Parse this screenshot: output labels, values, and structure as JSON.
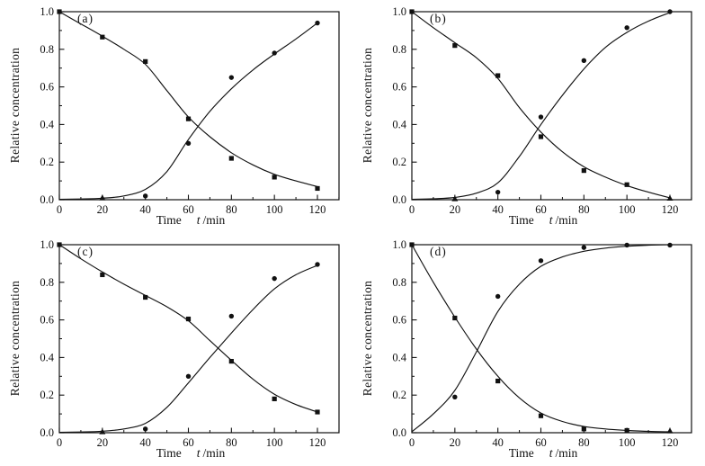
{
  "figure": {
    "ylabel": "Relative concentration",
    "xlabel_word": "Time",
    "xlabel_symbol": "t",
    "xlabel_unit": "/min",
    "line_color": "#111111",
    "background": "#ffffff"
  },
  "chart_data": [
    {
      "type": "line",
      "panel_label": "(a)",
      "xlabel": "Time t /min",
      "ylabel": "Relative concentration",
      "xlim": [
        0,
        130
      ],
      "ylim": [
        0,
        1.0
      ],
      "x_ticks": [
        0,
        20,
        40,
        60,
        80,
        100,
        120
      ],
      "x_minor_ticks": [
        10,
        30,
        50,
        70,
        90,
        110,
        130
      ],
      "y_ticks": [
        0.0,
        0.2,
        0.4,
        0.6,
        0.8,
        1.0
      ],
      "y_minor_ticks": [
        0.1,
        0.3,
        0.5,
        0.7,
        0.9
      ],
      "legend": "none",
      "grid": false,
      "series": [
        {
          "name": "reactant-squares",
          "marker": "square",
          "points": [
            [
              0,
              1.0
            ],
            [
              20,
              0.865
            ],
            [
              40,
              0.735
            ],
            [
              60,
              0.43
            ],
            [
              80,
              0.22
            ],
            [
              100,
              0.12
            ],
            [
              120,
              0.06
            ]
          ],
          "curve": [
            [
              0,
              1.0
            ],
            [
              10,
              0.935
            ],
            [
              20,
              0.87
            ],
            [
              30,
              0.8
            ],
            [
              40,
              0.72
            ],
            [
              50,
              0.58
            ],
            [
              60,
              0.44
            ],
            [
              70,
              0.335
            ],
            [
              80,
              0.25
            ],
            [
              90,
              0.185
            ],
            [
              100,
              0.135
            ],
            [
              110,
              0.1
            ],
            [
              120,
              0.07
            ]
          ]
        },
        {
          "name": "product-circles",
          "marker": "circle",
          "points": [
            [
              40,
              0.02
            ],
            [
              60,
              0.3
            ],
            [
              80,
              0.65
            ],
            [
              100,
              0.78
            ],
            [
              120,
              0.94
            ]
          ],
          "curve": [
            [
              0,
              0.002
            ],
            [
              10,
              0.004
            ],
            [
              20,
              0.008
            ],
            [
              30,
              0.02
            ],
            [
              40,
              0.055
            ],
            [
              50,
              0.15
            ],
            [
              60,
              0.32
            ],
            [
              70,
              0.47
            ],
            [
              80,
              0.59
            ],
            [
              90,
              0.69
            ],
            [
              100,
              0.775
            ],
            [
              110,
              0.855
            ],
            [
              120,
              0.94
            ]
          ]
        },
        {
          "name": "intermediate-triangles",
          "marker": "triangle",
          "points": [
            [
              20,
              0.01
            ]
          ],
          "curve": []
        }
      ]
    },
    {
      "type": "line",
      "panel_label": "(b)",
      "xlabel": "Time t /min",
      "ylabel": "Relative concentration",
      "xlim": [
        0,
        130
      ],
      "ylim": [
        0,
        1.0
      ],
      "x_ticks": [
        0,
        20,
        40,
        60,
        80,
        100,
        120
      ],
      "x_minor_ticks": [
        10,
        30,
        50,
        70,
        90,
        110,
        130
      ],
      "y_ticks": [
        0.0,
        0.2,
        0.4,
        0.6,
        0.8,
        1.0
      ],
      "y_minor_ticks": [
        0.1,
        0.3,
        0.5,
        0.7,
        0.9
      ],
      "legend": "none",
      "grid": false,
      "series": [
        {
          "name": "reactant-squares",
          "marker": "square",
          "points": [
            [
              0,
              1.0
            ],
            [
              20,
              0.82
            ],
            [
              40,
              0.66
            ],
            [
              60,
              0.335
            ],
            [
              80,
              0.155
            ],
            [
              100,
              0.08
            ]
          ],
          "curve": [
            [
              0,
              1.0
            ],
            [
              10,
              0.915
            ],
            [
              20,
              0.835
            ],
            [
              30,
              0.755
            ],
            [
              40,
              0.645
            ],
            [
              50,
              0.49
            ],
            [
              60,
              0.36
            ],
            [
              70,
              0.255
            ],
            [
              80,
              0.175
            ],
            [
              90,
              0.12
            ],
            [
              100,
              0.075
            ],
            [
              110,
              0.04
            ],
            [
              120,
              0.01
            ]
          ]
        },
        {
          "name": "product-circles",
          "marker": "circle",
          "points": [
            [
              40,
              0.04
            ],
            [
              60,
              0.44
            ],
            [
              80,
              0.74
            ],
            [
              100,
              0.915
            ],
            [
              120,
              1.0
            ]
          ],
          "curve": [
            [
              0,
              0.002
            ],
            [
              10,
              0.005
            ],
            [
              20,
              0.012
            ],
            [
              30,
              0.035
            ],
            [
              40,
              0.09
            ],
            [
              50,
              0.23
            ],
            [
              60,
              0.4
            ],
            [
              70,
              0.555
            ],
            [
              80,
              0.695
            ],
            [
              90,
              0.81
            ],
            [
              100,
              0.89
            ],
            [
              110,
              0.95
            ],
            [
              120,
              0.995
            ]
          ]
        },
        {
          "name": "intermediate-triangles",
          "marker": "triangle",
          "points": [
            [
              20,
              0.005
            ],
            [
              120,
              0.008
            ]
          ],
          "curve": []
        }
      ]
    },
    {
      "type": "line",
      "panel_label": "(c)",
      "xlabel": "Time t /min",
      "ylabel": "Relative concentration",
      "xlim": [
        0,
        130
      ],
      "ylim": [
        0,
        1.0
      ],
      "x_ticks": [
        0,
        20,
        40,
        60,
        80,
        100,
        120
      ],
      "x_minor_ticks": [
        10,
        30,
        50,
        70,
        90,
        110,
        130
      ],
      "y_ticks": [
        0.0,
        0.2,
        0.4,
        0.6,
        0.8,
        1.0
      ],
      "y_minor_ticks": [
        0.1,
        0.3,
        0.5,
        0.7,
        0.9
      ],
      "legend": "none",
      "grid": false,
      "series": [
        {
          "name": "reactant-squares",
          "marker": "square",
          "points": [
            [
              0,
              1.0
            ],
            [
              20,
              0.84
            ],
            [
              40,
              0.72
            ],
            [
              60,
              0.605
            ],
            [
              80,
              0.38
            ],
            [
              100,
              0.18
            ],
            [
              120,
              0.11
            ]
          ],
          "curve": [
            [
              0,
              1.0
            ],
            [
              10,
              0.925
            ],
            [
              20,
              0.855
            ],
            [
              30,
              0.79
            ],
            [
              40,
              0.73
            ],
            [
              50,
              0.67
            ],
            [
              60,
              0.595
            ],
            [
              70,
              0.49
            ],
            [
              80,
              0.385
            ],
            [
              90,
              0.285
            ],
            [
              100,
              0.205
            ],
            [
              110,
              0.15
            ],
            [
              120,
              0.11
            ]
          ]
        },
        {
          "name": "product-circles",
          "marker": "circle",
          "points": [
            [
              40,
              0.02
            ],
            [
              60,
              0.3
            ],
            [
              80,
              0.62
            ],
            [
              100,
              0.82
            ],
            [
              120,
              0.895
            ]
          ],
          "curve": [
            [
              0,
              0.002
            ],
            [
              10,
              0.004
            ],
            [
              20,
              0.008
            ],
            [
              30,
              0.02
            ],
            [
              40,
              0.05
            ],
            [
              50,
              0.135
            ],
            [
              60,
              0.265
            ],
            [
              70,
              0.4
            ],
            [
              80,
              0.53
            ],
            [
              90,
              0.655
            ],
            [
              100,
              0.765
            ],
            [
              110,
              0.84
            ],
            [
              120,
              0.89
            ]
          ]
        },
        {
          "name": "intermediate-triangles",
          "marker": "triangle",
          "points": [
            [
              20,
              0.005
            ]
          ],
          "curve": []
        }
      ]
    },
    {
      "type": "line",
      "panel_label": "(d)",
      "xlabel": "Time t /min",
      "ylabel": "Relative concentration",
      "xlim": [
        0,
        130
      ],
      "ylim": [
        0,
        1.0
      ],
      "x_ticks": [
        0,
        20,
        40,
        60,
        80,
        100,
        120
      ],
      "x_minor_ticks": [
        10,
        30,
        50,
        70,
        90,
        110,
        130
      ],
      "y_ticks": [
        0.0,
        0.2,
        0.4,
        0.6,
        0.8,
        1.0
      ],
      "y_minor_ticks": [
        0.1,
        0.3,
        0.5,
        0.7,
        0.9
      ],
      "legend": "none",
      "grid": false,
      "series": [
        {
          "name": "reactant-squares",
          "marker": "square",
          "points": [
            [
              0,
              1.0
            ],
            [
              20,
              0.61
            ],
            [
              40,
              0.275
            ],
            [
              60,
              0.09
            ],
            [
              80,
              0.02
            ],
            [
              100,
              0.012
            ]
          ],
          "curve": [
            [
              0,
              1.0
            ],
            [
              10,
              0.8
            ],
            [
              20,
              0.615
            ],
            [
              30,
              0.445
            ],
            [
              40,
              0.3
            ],
            [
              50,
              0.185
            ],
            [
              60,
              0.105
            ],
            [
              70,
              0.06
            ],
            [
              80,
              0.033
            ],
            [
              90,
              0.02
            ],
            [
              100,
              0.012
            ],
            [
              110,
              0.007
            ],
            [
              120,
              0.005
            ]
          ]
        },
        {
          "name": "product-circles",
          "marker": "circle",
          "points": [
            [
              20,
              0.19
            ],
            [
              40,
              0.725
            ],
            [
              60,
              0.915
            ],
            [
              80,
              0.985
            ],
            [
              100,
              0.998
            ],
            [
              120,
              0.998
            ]
          ],
          "curve": [
            [
              0,
              0.005
            ],
            [
              10,
              0.1
            ],
            [
              20,
              0.225
            ],
            [
              30,
              0.43
            ],
            [
              40,
              0.645
            ],
            [
              50,
              0.79
            ],
            [
              60,
              0.885
            ],
            [
              70,
              0.935
            ],
            [
              80,
              0.965
            ],
            [
              90,
              0.982
            ],
            [
              100,
              0.992
            ],
            [
              110,
              0.997
            ],
            [
              120,
              1.0
            ]
          ]
        },
        {
          "name": "intermediate-triangles",
          "marker": "triangle",
          "points": [
            [
              120,
              0.01
            ]
          ],
          "curve": []
        }
      ]
    }
  ]
}
